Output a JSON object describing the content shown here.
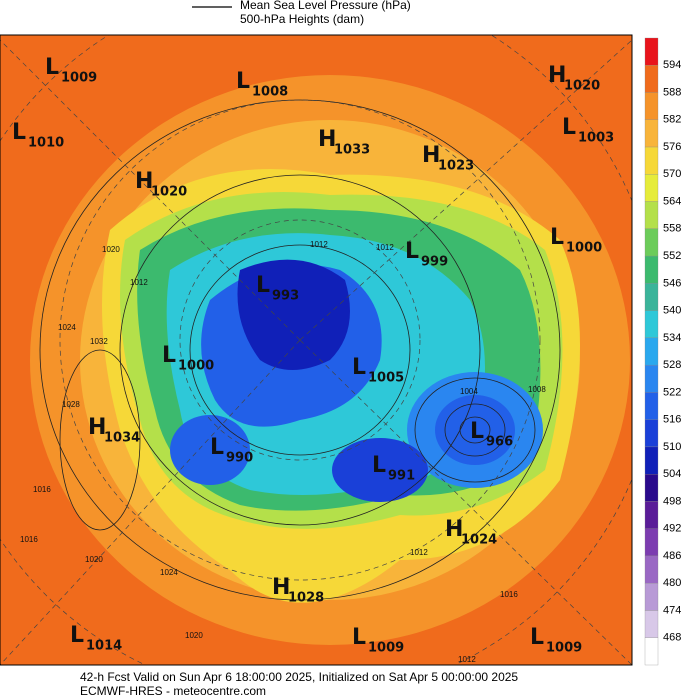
{
  "legend": {
    "lines": [
      "Mean Sea Level Pressure (hPa)",
      "500-hPa Heights (dam)"
    ]
  },
  "colorbar": {
    "labels": [
      594,
      588,
      582,
      576,
      570,
      564,
      558,
      552,
      546,
      540,
      534,
      528,
      522,
      516,
      510,
      504,
      498,
      492,
      486,
      480,
      474,
      468
    ],
    "colors": [
      "#e8141c",
      "#f06b1c",
      "#f5932a",
      "#f8b43a",
      "#f6d838",
      "#e6ec3a",
      "#b4e04a",
      "#6ccc5a",
      "#3cba6e",
      "#3ab49a",
      "#2ec8d8",
      "#2aa8ee",
      "#2a86f0",
      "#2260e8",
      "#1a40d8",
      "#1020b8",
      "#2a0a8c",
      "#5a1c98",
      "#7c3cb0",
      "#9a68c4",
      "#b89ad6",
      "#d8c8e8",
      "#ffffff"
    ]
  },
  "centers": [
    {
      "kind": "L",
      "value": 1009
    },
    {
      "kind": "L",
      "value": 1008
    },
    {
      "kind": "H",
      "value": 1020
    },
    {
      "kind": "L",
      "value": 1010
    },
    {
      "kind": "H",
      "value": 1033
    },
    {
      "kind": "L",
      "value": 1003
    },
    {
      "kind": "H",
      "value": 1023
    },
    {
      "kind": "H",
      "value": 1020
    },
    {
      "kind": "L",
      "value": 1000
    },
    {
      "kind": "L",
      "value": 999
    },
    {
      "kind": "L",
      "value": 993
    },
    {
      "kind": "L",
      "value": 1000
    },
    {
      "kind": "L",
      "value": 1005
    },
    {
      "kind": "H",
      "value": 1034
    },
    {
      "kind": "L",
      "value": 966
    },
    {
      "kind": "L",
      "value": 990
    },
    {
      "kind": "L",
      "value": 991
    },
    {
      "kind": "H",
      "value": 1024
    },
    {
      "kind": "H",
      "value": 1028
    },
    {
      "kind": "L",
      "value": 1014
    },
    {
      "kind": "L",
      "value": 1009
    },
    {
      "kind": "L",
      "value": 1009
    }
  ],
  "contour_labels": [
    1012,
    1020,
    1024,
    1032,
    1028,
    1016,
    1012,
    1008,
    1004,
    1012,
    1020,
    1024,
    1016,
    1012,
    1016,
    1020,
    1012
  ],
  "footer": {
    "lines": [
      "42-h Fcst Valid on Sun Apr  6 18:00:00 2025, Initialized on Sat Apr  5 00:00:00 2025",
      "ECMWF-HRES  - meteocentre.com"
    ]
  }
}
